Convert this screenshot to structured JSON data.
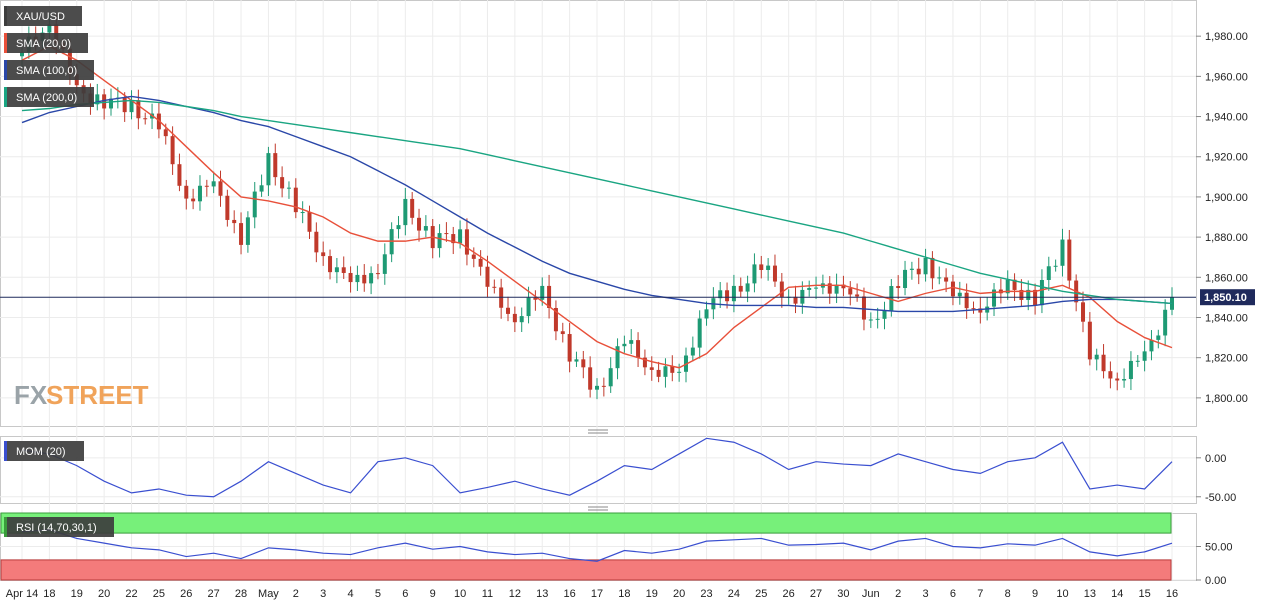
{
  "chart_data": [
    {
      "type": "candlestick",
      "title": "XAU/USD",
      "ylim": [
        1786,
        1998
      ],
      "y_ticks": [
        1800,
        1820,
        1840,
        1860,
        1880,
        1900,
        1920,
        1940,
        1960,
        1980
      ],
      "y_tick_labels": [
        "1,800.00",
        "1,820.00",
        "1,840.00",
        "1,860.00",
        "1,880.00",
        "1,900.00",
        "1,920.00",
        "1,940.00",
        "1,960.00",
        "1,980.00"
      ],
      "last_price": 1850.1,
      "last_price_label": "1,850.10",
      "x_labels": [
        "Apr 14",
        "18",
        "19",
        "20",
        "22",
        "25",
        "26",
        "27",
        "28",
        "May",
        "2",
        "3",
        "4",
        "5",
        "6",
        "9",
        "10",
        "11",
        "12",
        "13",
        "16",
        "17",
        "18",
        "19",
        "20",
        "23",
        "24",
        "25",
        "26",
        "27",
        "30",
        "Jun",
        "2",
        "3",
        "6",
        "7",
        "8",
        "9",
        "10",
        "13",
        "14",
        "15",
        "16"
      ],
      "close_anchors": [
        1972,
        1988,
        1952,
        1948,
        1945,
        1935,
        1900,
        1905,
        1880,
        1918,
        1895,
        1870,
        1856,
        1865,
        1895,
        1878,
        1882,
        1855,
        1840,
        1852,
        1822,
        1803,
        1828,
        1815,
        1810,
        1848,
        1852,
        1866,
        1850,
        1853,
        1858,
        1835,
        1858,
        1868,
        1850,
        1845,
        1855,
        1850,
        1876,
        1820,
        1810,
        1820,
        1850.1
      ],
      "series": [
        {
          "name": "SMA (20,0)",
          "values": [
            1968,
            1975,
            1968,
            1958,
            1948,
            1938,
            1925,
            1912,
            1900,
            1898,
            1895,
            1890,
            1882,
            1878,
            1878,
            1880,
            1877,
            1868,
            1858,
            1848,
            1838,
            1828,
            1822,
            1818,
            1815,
            1822,
            1835,
            1845,
            1855,
            1856,
            1856,
            1852,
            1848,
            1852,
            1855,
            1852,
            1853,
            1853,
            1856,
            1850,
            1838,
            1830,
            1825
          ]
        },
        {
          "name": "SMA (100,0)",
          "values": [
            1937,
            1942,
            1945,
            1948,
            1950,
            1948,
            1945,
            1942,
            1938,
            1935,
            1930,
            1925,
            1920,
            1913,
            1906,
            1898,
            1890,
            1882,
            1875,
            1868,
            1862,
            1858,
            1854,
            1851,
            1849,
            1847,
            1846,
            1846,
            1846,
            1845,
            1845,
            1844,
            1843,
            1843,
            1843,
            1844,
            1845,
            1846,
            1848,
            1849,
            1849,
            1848,
            1847
          ]
        },
        {
          "name": "SMA (200,0)",
          "values": [
            1943,
            1944,
            1946,
            1947,
            1948,
            1947,
            1945,
            1943,
            1940,
            1938,
            1936,
            1934,
            1932,
            1930,
            1928,
            1926,
            1924,
            1921,
            1918,
            1915,
            1912,
            1909,
            1906,
            1903,
            1900,
            1897,
            1894,
            1891,
            1888,
            1885,
            1882,
            1878,
            1874,
            1870,
            1866,
            1862,
            1859,
            1856,
            1853,
            1851,
            1849,
            1848,
            1847
          ]
        }
      ]
    },
    {
      "type": "line",
      "title": "MOM (20)",
      "ylim": [
        -58,
        28
      ],
      "y_ticks": [
        0,
        -50
      ],
      "y_tick_labels": [
        "0.00",
        "-50.00"
      ],
      "series": [
        {
          "name": "MOM (20)",
          "values": [
            10,
            5,
            -10,
            -30,
            -45,
            -40,
            -48,
            -50,
            -30,
            -5,
            -20,
            -35,
            -45,
            -5,
            0,
            -10,
            -45,
            -38,
            -30,
            -40,
            -48,
            -30,
            -10,
            -15,
            5,
            25,
            20,
            5,
            -15,
            -5,
            -8,
            -10,
            5,
            -5,
            -15,
            -20,
            -5,
            0,
            20,
            -40,
            -35,
            -40,
            -5
          ]
        }
      ]
    },
    {
      "type": "line",
      "title": "RSI (14,70,30,1)",
      "ylim": [
        0,
        100
      ],
      "y_ticks": [
        50,
        0
      ],
      "y_tick_labels": [
        "50.00",
        "0.00"
      ],
      "overbought": 70,
      "oversold": 30,
      "series": [
        {
          "name": "RSI",
          "values": [
            72,
            75,
            62,
            55,
            48,
            45,
            35,
            40,
            32,
            48,
            45,
            40,
            38,
            48,
            55,
            46,
            50,
            42,
            38,
            40,
            32,
            28,
            44,
            40,
            46,
            58,
            60,
            62,
            52,
            53,
            55,
            45,
            58,
            62,
            50,
            48,
            54,
            52,
            62,
            42,
            36,
            42,
            55
          ]
        }
      ]
    }
  ],
  "legend": {
    "sma20_color": "#e8503a",
    "sma100_color": "#2a47a8",
    "sma200_color": "#1aa582",
    "candle_up_color": "#1e9a74",
    "candle_down_color": "#c0392b",
    "mom_color": "#3a4fd0",
    "rsi_color": "#3a4fd0",
    "overbought_color": "#77f07a",
    "oversold_color": "#f47b7b"
  },
  "branding": {
    "logo_fx": "FX",
    "logo_street": "STREET"
  }
}
